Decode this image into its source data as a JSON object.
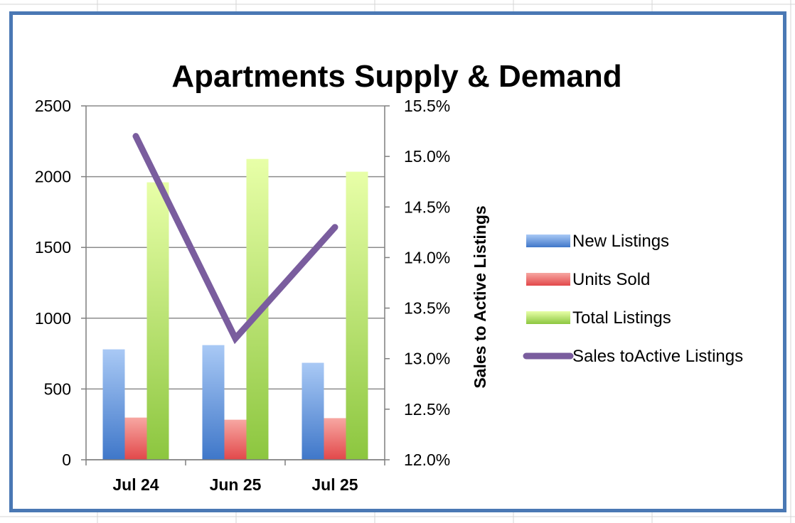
{
  "colors": {
    "frame": "#4a78b4",
    "sheet_grid": "#d4d4d4",
    "gridline": "#8c8c8c",
    "axis": "#7f7f7f",
    "new_listings": [
      "#a9c9f5",
      "#3f77c9"
    ],
    "units_sold": [
      "#f7a7a2",
      "#e2484a"
    ],
    "total_listings": [
      "#e8ffa8",
      "#8cc63f"
    ],
    "ratio_line": "#7a5d9e"
  },
  "chart_data": {
    "type": "bar",
    "title": "Apartments Supply & Demand",
    "categories": [
      "Jul 24",
      "Jun 25",
      "Jul 25"
    ],
    "series": [
      {
        "name": "New Listings",
        "type": "bar",
        "axis": "left",
        "values": [
          780,
          810,
          685
        ]
      },
      {
        "name": "Units Sold",
        "type": "bar",
        "axis": "left",
        "values": [
          298,
          283,
          294
        ]
      },
      {
        "name": "Total Listings",
        "type": "bar",
        "axis": "left",
        "values": [
          1960,
          2125,
          2035
        ]
      },
      {
        "name": "Sales toActive Listings",
        "type": "line",
        "axis": "right",
        "values": [
          15.2,
          13.2,
          14.3
        ]
      }
    ],
    "y_left": {
      "ylim": [
        0,
        2500
      ],
      "ticks": [
        "0",
        "500",
        "1000",
        "1500",
        "2000",
        "2500"
      ]
    },
    "y_right": {
      "label": "Sales to Active Listings",
      "ylim": [
        12.0,
        15.5
      ],
      "ticks": [
        "12.0%",
        "12.5%",
        "13.0%",
        "13.5%",
        "14.0%",
        "14.5%",
        "15.0%",
        "15.5%"
      ]
    },
    "grid": true,
    "legend": "right"
  }
}
